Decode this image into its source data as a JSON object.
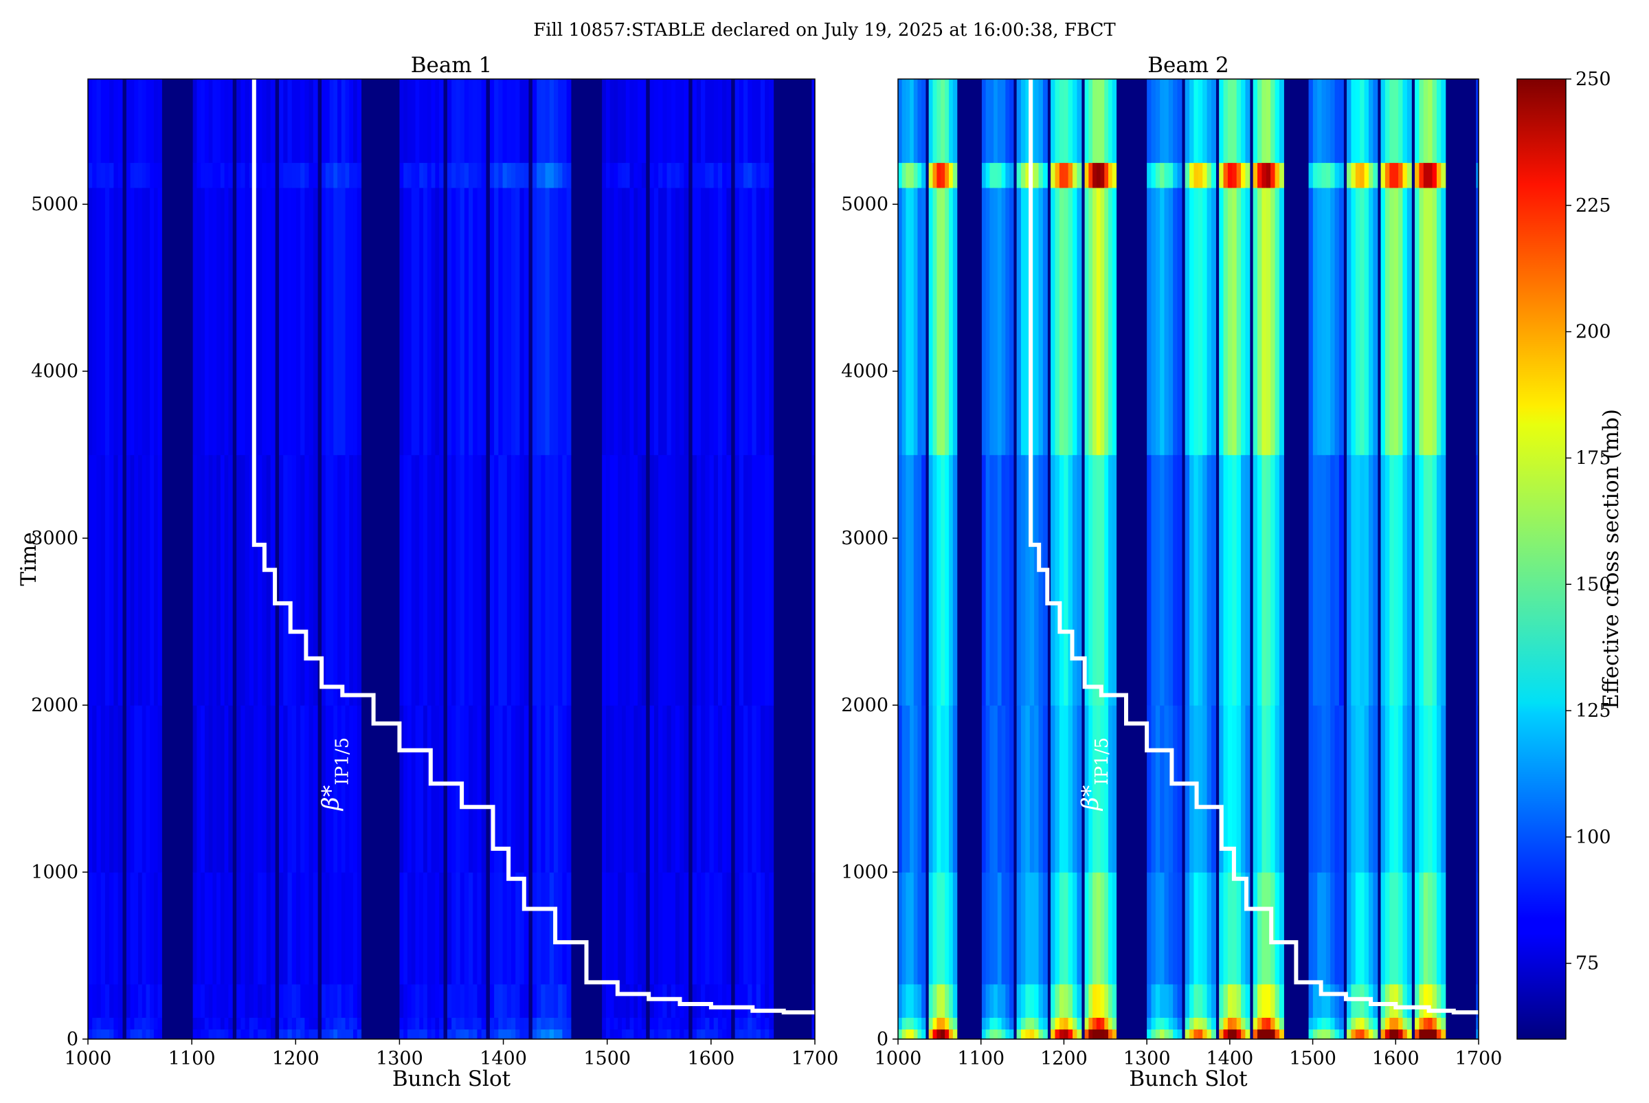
{
  "suptitle": "Fill 10857:STABLE declared on July 19, 2025 at 16:00:38, FBCT",
  "chart_data": {
    "type": "heatmap",
    "xlabel": "Bunch Slot",
    "ylabel": "Time",
    "xlim": [
      1000,
      1700
    ],
    "ylim": [
      0,
      5750
    ],
    "x_ticks": [
      1000,
      1100,
      1200,
      1300,
      1400,
      1500,
      1600,
      1700
    ],
    "y_ticks": [
      0,
      1000,
      2000,
      3000,
      4000,
      5000
    ],
    "colorbar": {
      "label": "Effective cross section (mb)",
      "min": 60,
      "max": 250,
      "ticks": [
        75,
        100,
        125,
        150,
        175,
        200,
        225,
        250
      ],
      "colormap": "jet"
    },
    "panels": [
      {
        "title": "Beam 1",
        "filled_slot_ranges": [
          [
            1000,
            1033
          ],
          [
            1037,
            1071
          ],
          [
            1101,
            1139
          ],
          [
            1143,
            1180
          ],
          [
            1184,
            1221
          ],
          [
            1225,
            1263
          ],
          [
            1300,
            1342
          ],
          [
            1346,
            1383
          ],
          [
            1387,
            1424
          ],
          [
            1428,
            1465
          ],
          [
            1495,
            1537
          ],
          [
            1541,
            1578
          ],
          [
            1582,
            1619
          ],
          [
            1623,
            1660
          ],
          [
            1697,
            1700
          ]
        ],
        "train_peak_values": [
          88,
          88,
          85,
          85,
          90,
          92,
          88,
          92,
          95,
          102,
          84,
          86,
          88,
          90,
          84
        ],
        "beta_label": "β*IP1/5",
        "beta_star_curve": {
          "x": [
            1160,
            1160,
            1170,
            1170,
            1180,
            1180,
            1195,
            1195,
            1210,
            1210,
            1225,
            1225,
            1245,
            1245,
            1275,
            1275,
            1300,
            1300,
            1330,
            1330,
            1360,
            1360,
            1390,
            1390,
            1405,
            1405,
            1420,
            1420,
            1450,
            1450,
            1480,
            1480,
            1510,
            1510,
            1540,
            1540,
            1570,
            1570,
            1600,
            1600,
            1640,
            1640,
            1670,
            1670,
            1700
          ],
          "y": [
            5750,
            2960,
            2960,
            2810,
            2810,
            2610,
            2610,
            2440,
            2440,
            2280,
            2280,
            2110,
            2110,
            2060,
            2060,
            1890,
            1890,
            1730,
            1730,
            1530,
            1530,
            1390,
            1390,
            1140,
            1140,
            960,
            960,
            780,
            780,
            580,
            580,
            340,
            340,
            270,
            270,
            240,
            240,
            210,
            210,
            190,
            190,
            170,
            170,
            160,
            160
          ]
        }
      },
      {
        "title": "Beam 2",
        "filled_slot_ranges": [
          [
            1000,
            1033
          ],
          [
            1037,
            1071
          ],
          [
            1101,
            1139
          ],
          [
            1143,
            1180
          ],
          [
            1184,
            1221
          ],
          [
            1225,
            1263
          ],
          [
            1300,
            1342
          ],
          [
            1346,
            1383
          ],
          [
            1387,
            1424
          ],
          [
            1428,
            1465
          ],
          [
            1495,
            1537
          ],
          [
            1541,
            1578
          ],
          [
            1582,
            1619
          ],
          [
            1623,
            1660
          ],
          [
            1697,
            1700
          ]
        ],
        "train_peak_values": [
          150,
          205,
          135,
          160,
          200,
          230,
          140,
          175,
          210,
          225,
          140,
          180,
          210,
          225,
          110
        ],
        "beta_label": "β*IP1/5",
        "beta_star_curve": {
          "x": [
            1160,
            1160,
            1170,
            1170,
            1180,
            1180,
            1195,
            1195,
            1210,
            1210,
            1225,
            1225,
            1245,
            1245,
            1275,
            1275,
            1300,
            1300,
            1330,
            1330,
            1360,
            1360,
            1390,
            1390,
            1405,
            1405,
            1420,
            1420,
            1450,
            1450,
            1480,
            1480,
            1510,
            1510,
            1540,
            1540,
            1570,
            1570,
            1600,
            1600,
            1640,
            1640,
            1670,
            1670,
            1700
          ],
          "y": [
            5750,
            2960,
            2960,
            2810,
            2810,
            2610,
            2610,
            2440,
            2440,
            2280,
            2280,
            2110,
            2110,
            2060,
            2060,
            1890,
            1890,
            1730,
            1730,
            1530,
            1530,
            1390,
            1390,
            1140,
            1140,
            960,
            960,
            780,
            780,
            580,
            580,
            340,
            340,
            270,
            270,
            240,
            240,
            210,
            210,
            190,
            190,
            170,
            170,
            160,
            160
          ]
        }
      }
    ],
    "grid": false
  }
}
